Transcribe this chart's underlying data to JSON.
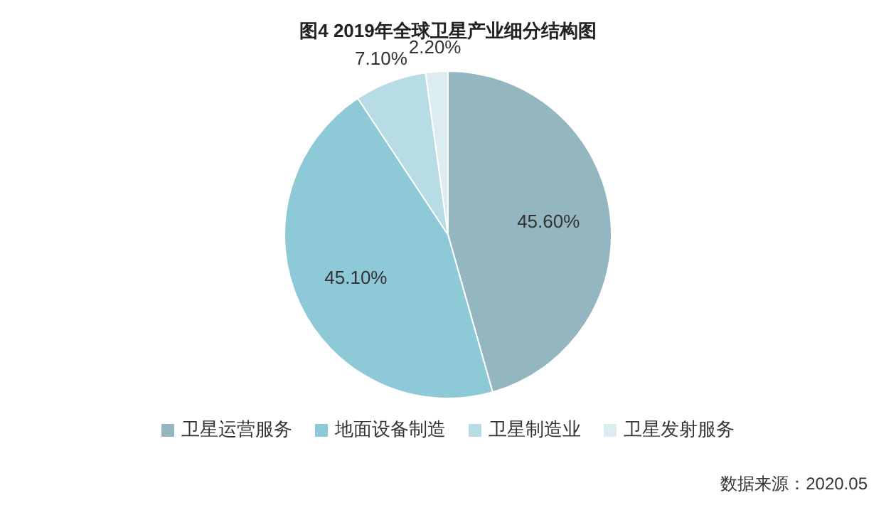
{
  "chart_data": {
    "type": "pie",
    "title": "图4  2019年全球卫星产业细分结构图",
    "categories": [
      "卫星运营服务",
      "地面设备制造",
      "卫星制造业",
      "卫星发射服务"
    ],
    "values": [
      45.6,
      45.1,
      7.1,
      2.2
    ],
    "colors": [
      "#93b6c0",
      "#8ec9d7",
      "#b8dce5",
      "#dcedf1"
    ],
    "value_labels": [
      "45.60%",
      "45.10%",
      "7.10%",
      "2.20%"
    ],
    "legend": "bottom",
    "annotations": [
      "数据来源：2020.05"
    ]
  }
}
